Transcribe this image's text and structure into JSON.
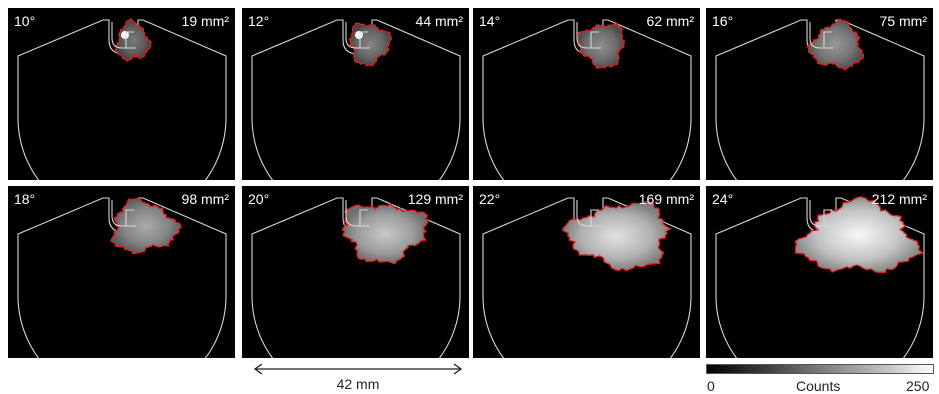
{
  "panels": [
    {
      "angle": "10°",
      "area": "19 mm²",
      "roi_level": 0.08,
      "hot_spot": true
    },
    {
      "angle": "12°",
      "area": "44 mm²",
      "roi_level": 0.16,
      "hot_spot": true
    },
    {
      "angle": "14°",
      "area": "62 mm²",
      "roi_level": 0.22,
      "hot_spot": false
    },
    {
      "angle": "16°",
      "area": "75 mm²",
      "roi_level": 0.28,
      "hot_spot": false
    },
    {
      "angle": "18°",
      "area": "98 mm²",
      "roi_level": 0.42,
      "hot_spot": false
    },
    {
      "angle": "20°",
      "area": "129 mm²",
      "roi_level": 0.62,
      "hot_spot": false
    },
    {
      "angle": "22°",
      "area": "169 mm²",
      "roi_level": 0.8,
      "hot_spot": false
    },
    {
      "angle": "24°",
      "area": "212 mm²",
      "roi_level": 0.95,
      "hot_spot": false
    }
  ],
  "scalebar": {
    "label": "42 mm"
  },
  "colorbar": {
    "min": "0",
    "title": "Counts",
    "max": "250"
  },
  "colors": {
    "outline": "#d8d8d8",
    "roi_contour": "#e02020",
    "background": "#000000"
  }
}
